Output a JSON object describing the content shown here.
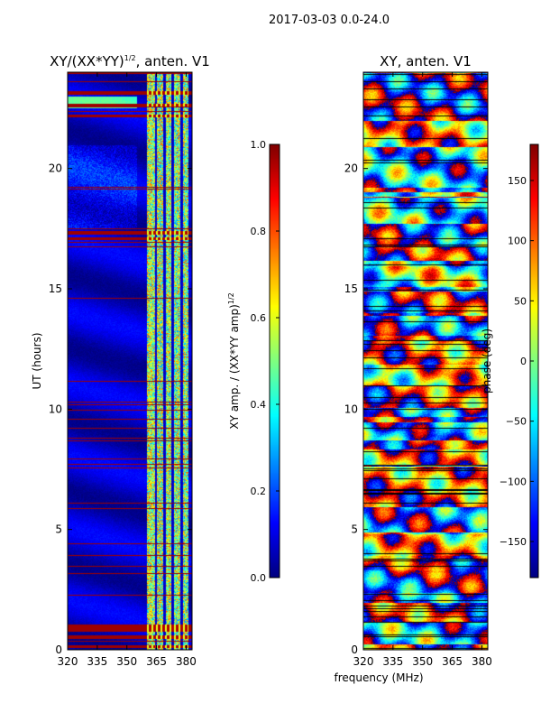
{
  "figure": {
    "suptitle": "2017-03-03 0.0-24.0"
  },
  "chart_data": [
    {
      "type": "heatmap",
      "title_main": "XY/(XX*YY)",
      "title_sup": "1/2",
      "title_tail": ", anten. V1",
      "xlabel": "",
      "ylabel": "UT (hours)",
      "xlim": [
        320,
        383
      ],
      "ylim": [
        0,
        24
      ],
      "xticks": [
        320,
        335,
        350,
        365,
        380
      ],
      "yticks": [
        0,
        5,
        10,
        15,
        20
      ],
      "colormap": "jet",
      "colorbar": {
        "label_main": "XY amp. / (XX*YY amp)",
        "label_sup": "1/2",
        "range": [
          0.0,
          1.0
        ],
        "ticks": [
          "0.0",
          "0.2",
          "0.4",
          "0.6",
          "0.8",
          "1.0"
        ],
        "tick_values": [
          0.0,
          0.2,
          0.4,
          0.6,
          0.8,
          1.0
        ]
      },
      "description_values": {
        "background_level": 0.05,
        "bright_band_mhz": [
          360,
          381
        ],
        "gap_channels_mhz": [
          364.5,
          368.8,
          373.0,
          377.5
        ],
        "saturated_hours": [
          0.15,
          0.55,
          0.85,
          1.0,
          17.1,
          17.35,
          22.2,
          22.65,
          23.15
        ]
      }
    },
    {
      "type": "heatmap",
      "title": "XY, anten. V1",
      "xlabel": "frequency (MHz)",
      "ylabel": "",
      "xlim": [
        320,
        383
      ],
      "ylim": [
        0,
        24
      ],
      "xticks": [
        320,
        335,
        350,
        365,
        380
      ],
      "yticks": [
        0,
        5,
        10,
        15,
        20
      ],
      "colormap": "jet",
      "colorbar": {
        "label": "phase (deg)",
        "range": [
          -180,
          180
        ],
        "ticks": [
          "150",
          "100",
          "50",
          "0",
          "−50",
          "−100",
          "−150"
        ],
        "tick_values": [
          150,
          100,
          50,
          0,
          -50,
          -100,
          -150
        ]
      }
    }
  ],
  "colors": {
    "jet_low": "#00007f",
    "jet_mid": "#7fff7f",
    "jet_high": "#7f0000",
    "frame": "#000000"
  }
}
